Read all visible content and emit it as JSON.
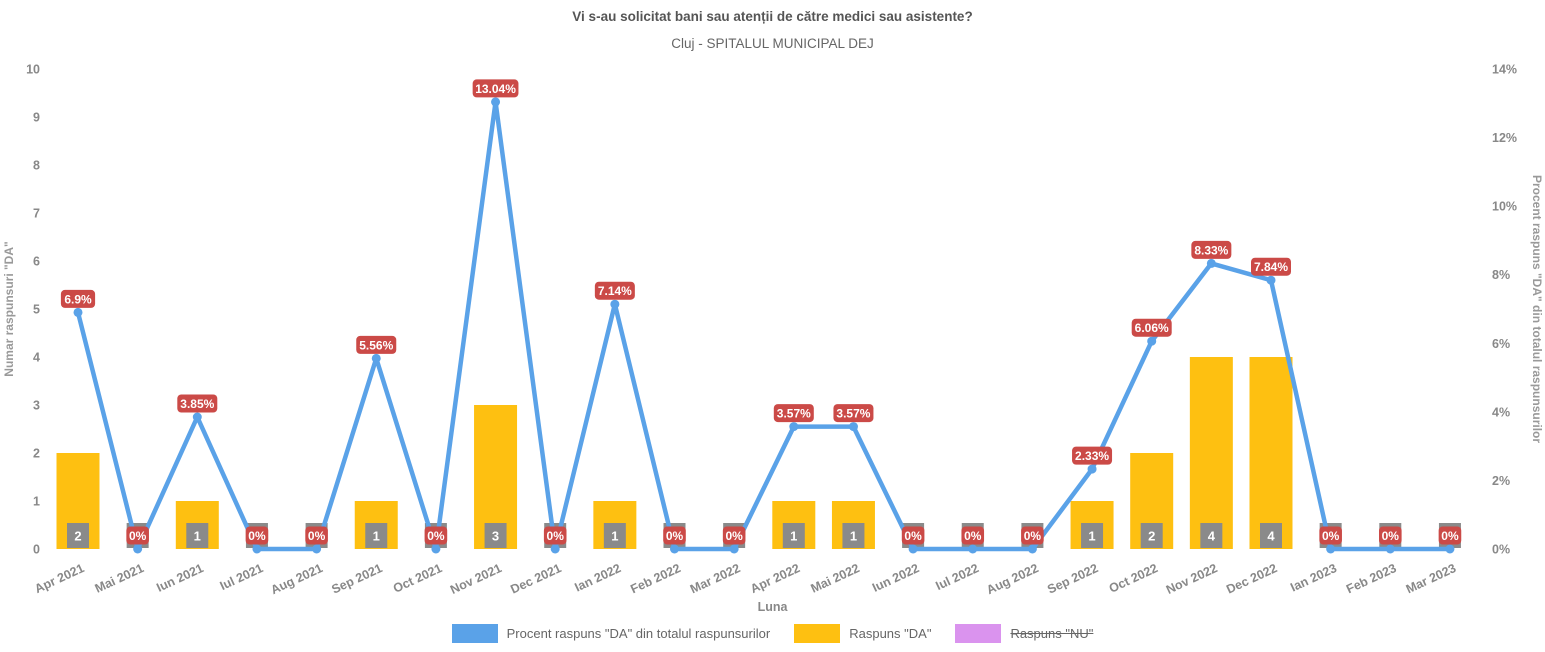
{
  "title": "Vi s-au solicitat bani sau atenții de către medici sau asistente?",
  "subtitle": "Cluj - SPITALUL MUNICIPAL DEJ",
  "colors": {
    "line_blue": "#5aa2e8",
    "bar_yellow": "#fec011",
    "badge_red": "#cb4a47",
    "value_box_gray": "#8a8a8a",
    "hidden_series_purple": "#da93ee",
    "axis_text": "#888888",
    "title_text": "#555555"
  },
  "chart_data": {
    "type": "bar",
    "title": "Vi s-au solicitat bani sau atenții de către medici sau asistente?",
    "subtitle": "Cluj - SPITALUL MUNICIPAL DEJ",
    "xlabel": "Luna",
    "grid": false,
    "legend_position": "bottom",
    "categories": [
      "Apr 2021",
      "Mai 2021",
      "Iun 2021",
      "Iul 2021",
      "Aug 2021",
      "Sep 2021",
      "Oct 2021",
      "Nov 2021",
      "Dec 2021",
      "Ian 2022",
      "Feb 2022",
      "Mar 2022",
      "Apr 2022",
      "Mai 2022",
      "Iun 2022",
      "Iul 2022",
      "Aug 2022",
      "Sep 2022",
      "Oct 2022",
      "Nov 2022",
      "Dec 2022",
      "Ian 2023",
      "Feb 2023",
      "Mar 2023"
    ],
    "series": [
      {
        "name": "Procent raspuns \"DA\" din totalul raspunsurilor",
        "type": "line",
        "axis": "right",
        "color": "#5aa2e8",
        "values": [
          6.9,
          0,
          3.85,
          0,
          0,
          5.56,
          0,
          13.04,
          0,
          7.14,
          0,
          0,
          3.57,
          3.57,
          0,
          0,
          0,
          2.33,
          6.06,
          8.33,
          7.84,
          0,
          0,
          0
        ],
        "labels": [
          "6.9%",
          "0%",
          "3.85%",
          "0%",
          "0%",
          "5.56%",
          "0%",
          "13.04%",
          "0%",
          "7.14%",
          "0%",
          "0%",
          "3.57%",
          "3.57%",
          "0%",
          "0%",
          "0%",
          "2.33%",
          "6.06%",
          "8.33%",
          "7.84%",
          "0%",
          "0%",
          "0%"
        ]
      },
      {
        "name": "Raspuns \"DA\"",
        "type": "bar",
        "axis": "left",
        "color": "#fec011",
        "values": [
          2,
          0,
          1,
          0,
          0,
          1,
          0,
          3,
          0,
          1,
          0,
          0,
          1,
          1,
          0,
          0,
          0,
          1,
          2,
          4,
          4,
          0,
          0,
          0
        ]
      },
      {
        "name": "Raspuns \"NU\"",
        "type": "bar",
        "axis": "left",
        "color": "#da93ee",
        "hidden": true,
        "values": []
      }
    ],
    "left_axis": {
      "title": "Numar raspunsuri \"DA\"",
      "ticks": [
        0,
        1,
        2,
        3,
        4,
        5,
        6,
        7,
        8,
        9,
        10
      ],
      "range": [
        0,
        10
      ]
    },
    "right_axis": {
      "title": "Procent raspuns \"DA\" din totalul raspunsurilor",
      "ticks": [
        0,
        2,
        4,
        6,
        8,
        10,
        12,
        14
      ],
      "tick_suffix": "%",
      "range": [
        0,
        14
      ]
    }
  },
  "legend": {
    "items": [
      {
        "label": "Procent raspuns \"DA\" din totalul raspunsurilor",
        "color": "#5aa2e8",
        "struck": false
      },
      {
        "label": "Raspuns \"DA\"",
        "color": "#fec011",
        "struck": false
      },
      {
        "label": "Raspuns \"NU\"",
        "color": "#da93ee",
        "struck": true
      }
    ]
  }
}
